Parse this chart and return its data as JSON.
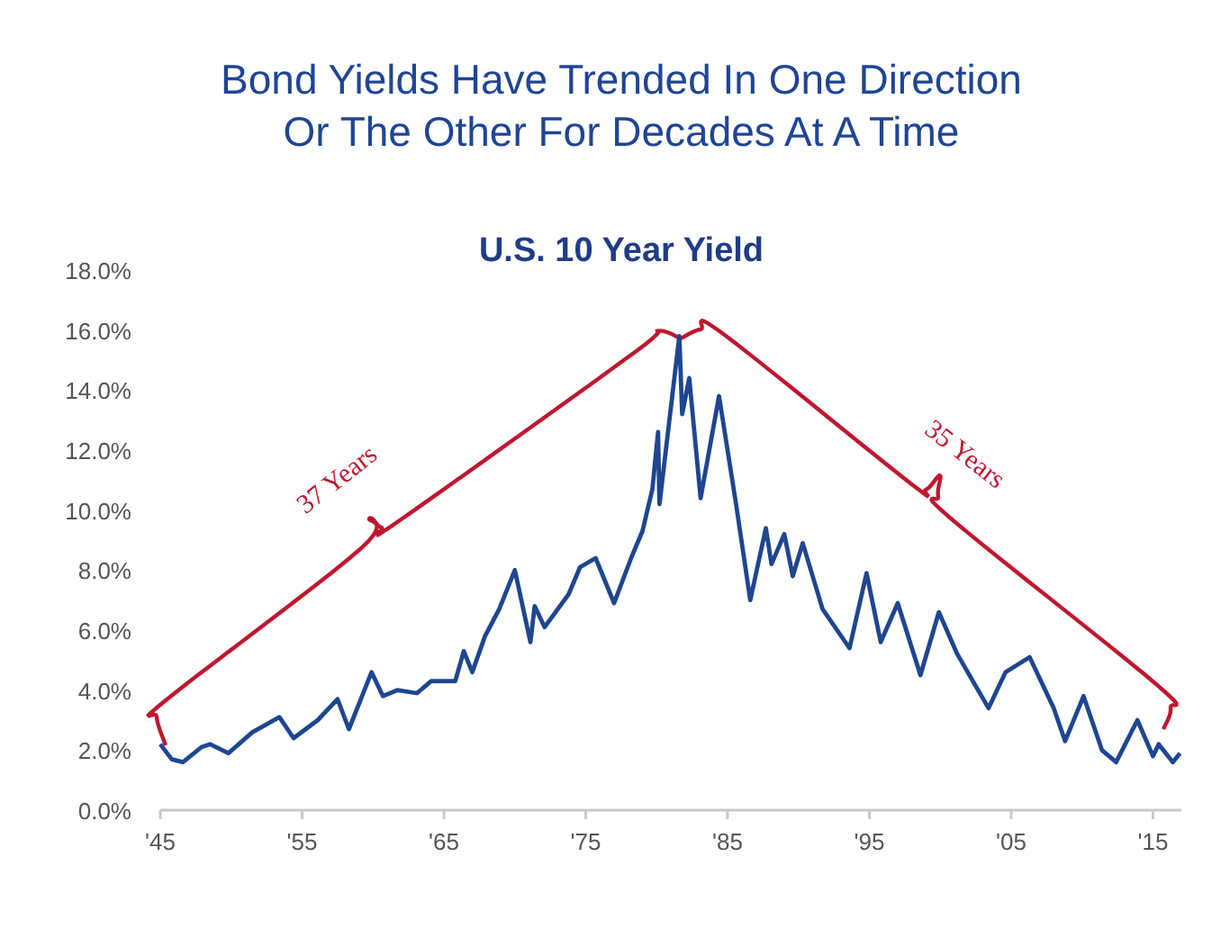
{
  "chart_data": {
    "type": "line",
    "title": "Bond Yields Have Trended In One Direction\nOr The Other For Decades At A Time",
    "subtitle": "U.S. 10 Year Yield",
    "x": [
      1945.0,
      1945.8,
      1946.6,
      1947.9,
      1948.5,
      1949.8,
      1951.5,
      1953.4,
      1954.4,
      1956.1,
      1957.5,
      1958.3,
      1959.9,
      1960.7,
      1961.7,
      1963.1,
      1964.1,
      1965.8,
      1966.4,
      1967.0,
      1967.9,
      1968.9,
      1970.0,
      1971.1,
      1971.4,
      1972.1,
      1973.8,
      1974.6,
      1975.7,
      1977.0,
      1978.2,
      1979.0,
      1979.7,
      1980.1,
      1980.2,
      1981.0,
      1981.6,
      1981.8,
      1982.3,
      1983.1,
      1984.4,
      1985.6,
      1986.6,
      1987.7,
      1988.1,
      1989.0,
      1989.6,
      1990.3,
      1991.7,
      1993.6,
      1994.8,
      1995.8,
      1997.0,
      1998.6,
      1999.9,
      2001.2,
      2003.4,
      2004.6,
      2006.3,
      2008.0,
      2008.8,
      2010.1,
      2011.4,
      2012.4,
      2013.9,
      2015.0,
      2015.4,
      2016.4,
      2016.9
    ],
    "series": [
      {
        "color": "#1e4691",
        "values": [
          2.2,
          1.7,
          1.6,
          2.1,
          2.2,
          1.9,
          2.6,
          3.1,
          2.4,
          3.0,
          3.7,
          2.7,
          4.6,
          3.8,
          4.0,
          3.9,
          4.3,
          4.3,
          5.3,
          4.6,
          5.8,
          6.7,
          8.0,
          5.6,
          6.8,
          6.1,
          7.2,
          8.1,
          8.4,
          6.9,
          8.4,
          9.3,
          10.7,
          12.6,
          10.2,
          13.4,
          15.8,
          13.2,
          14.4,
          10.4,
          13.8,
          10.2,
          7.0,
          9.4,
          8.2,
          9.2,
          7.8,
          8.9,
          6.7,
          5.4,
          7.9,
          5.6,
          6.9,
          4.5,
          6.6,
          5.2,
          3.4,
          4.6,
          5.1,
          3.4,
          2.3,
          3.8,
          2.0,
          1.6,
          3.0,
          1.8,
          2.2,
          1.6,
          1.9
        ]
      }
    ],
    "xlim": [
      1945,
      2017
    ],
    "xticks": [
      {
        "value": 1945,
        "label": "'45"
      },
      {
        "value": 1955,
        "label": "'55"
      },
      {
        "value": 1965,
        "label": "'65"
      },
      {
        "value": 1975,
        "label": "'75"
      },
      {
        "value": 1985,
        "label": "'85"
      },
      {
        "value": 1995,
        "label": "'95"
      },
      {
        "value": 2005,
        "label": "'05"
      },
      {
        "value": 2015,
        "label": "'15"
      }
    ],
    "ylim": [
      0,
      18
    ],
    "yticks": [
      {
        "value": 0,
        "label": "0.0%"
      },
      {
        "value": 2,
        "label": "2.0%"
      },
      {
        "value": 4,
        "label": "4.0%"
      },
      {
        "value": 6,
        "label": "6.0%"
      },
      {
        "value": 8,
        "label": "8.0%"
      },
      {
        "value": 10,
        "label": "10.0%"
      },
      {
        "value": 12,
        "label": "12.0%"
      },
      {
        "value": 14,
        "label": "14.0%"
      },
      {
        "value": 16,
        "label": "16.0%"
      },
      {
        "value": 18,
        "label": "18.0%"
      }
    ],
    "annotations": [
      "37 Years",
      "35 Years"
    ],
    "grid": false
  }
}
